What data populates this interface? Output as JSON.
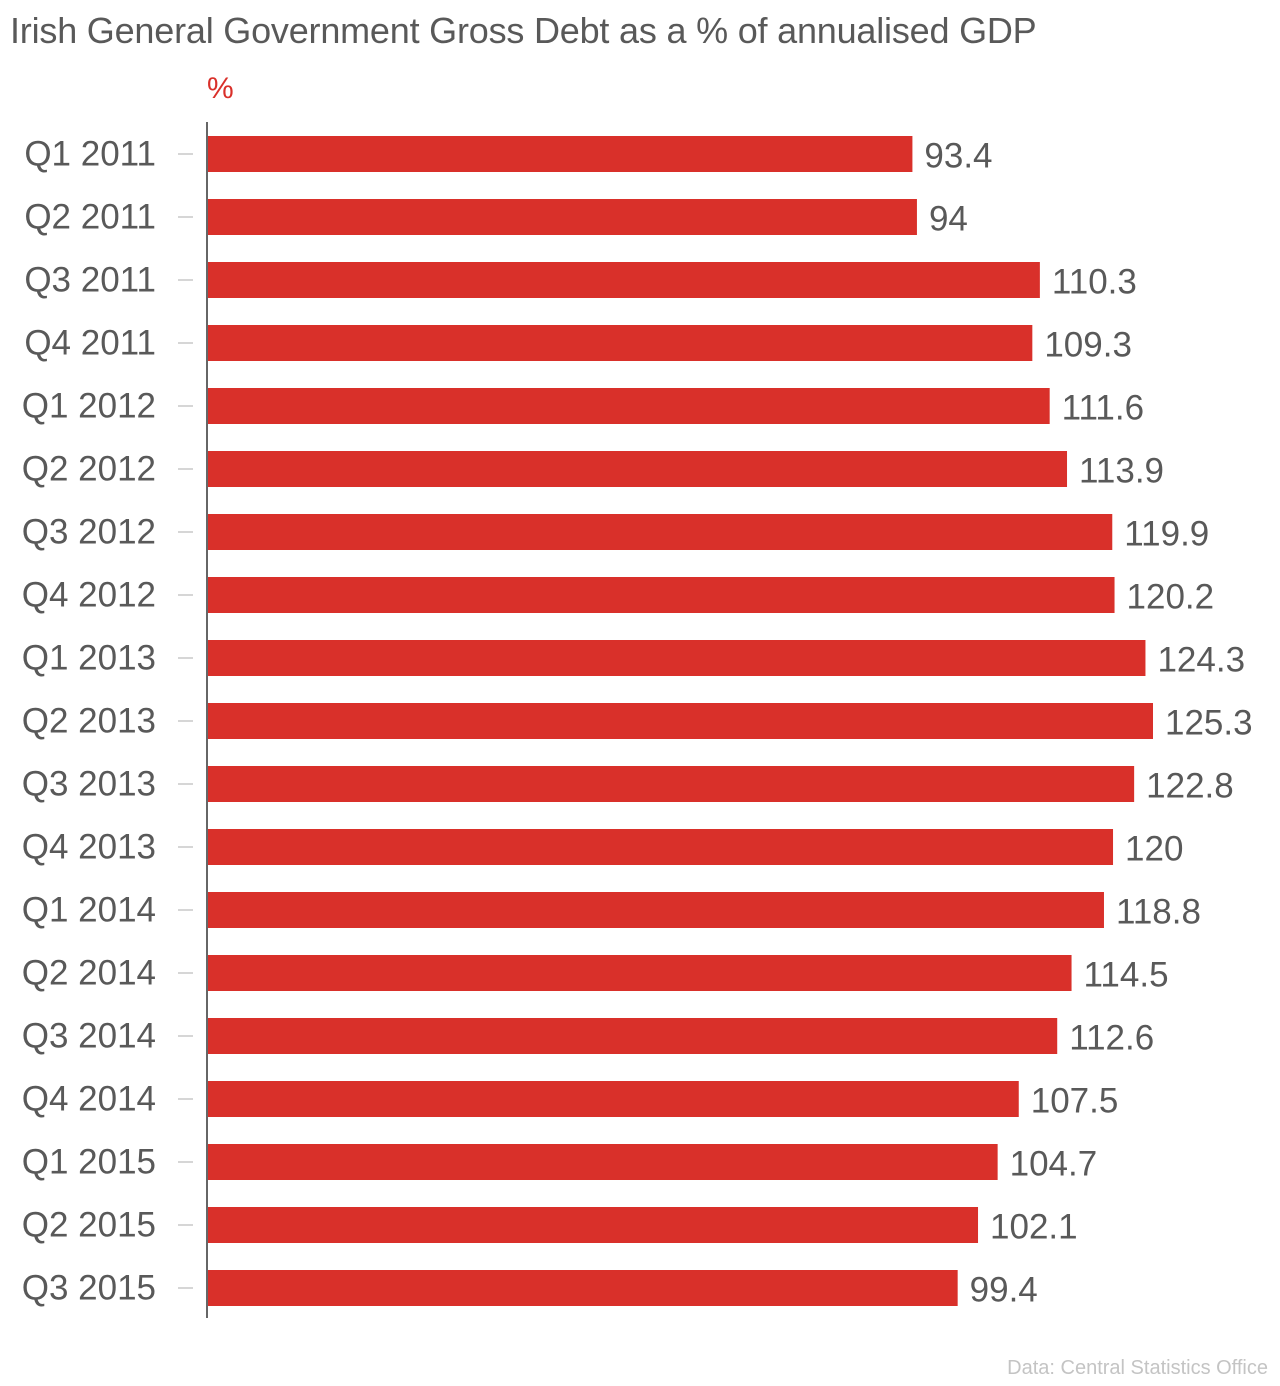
{
  "chart_data": {
    "type": "bar",
    "orientation": "horizontal",
    "title": "Irish General Government Gross Debt as a % of annualised GDP",
    "unit_label": "%",
    "source": "Data: Central Statistics Office",
    "bar_color": "#d9302a",
    "categories": [
      "Q1 2011",
      "Q2 2011",
      "Q3 2011",
      "Q4 2011",
      "Q1 2012",
      "Q2 2012",
      "Q3 2012",
      "Q4 2012",
      "Q1 2013",
      "Q2 2013",
      "Q3 2013",
      "Q4 2013",
      "Q1 2014",
      "Q2 2014",
      "Q3 2014",
      "Q4 2014",
      "Q1 2015",
      "Q2 2015",
      "Q3 2015"
    ],
    "values": [
      93.4,
      94,
      110.3,
      109.3,
      111.6,
      113.9,
      119.9,
      120.2,
      124.3,
      125.3,
      122.8,
      120,
      118.8,
      114.5,
      112.6,
      107.5,
      104.7,
      102.1,
      99.4
    ],
    "value_labels": [
      "93.4",
      "94",
      "110.3",
      "109.3",
      "111.6",
      "113.9",
      "119.9",
      "120.2",
      "124.3",
      "125.3",
      "122.8",
      "120",
      "118.8",
      "114.5",
      "112.6",
      "107.5",
      "104.7",
      "102.1",
      "99.4"
    ],
    "xlim": [
      0,
      125.3
    ],
    "grid": false,
    "legend": "none"
  }
}
